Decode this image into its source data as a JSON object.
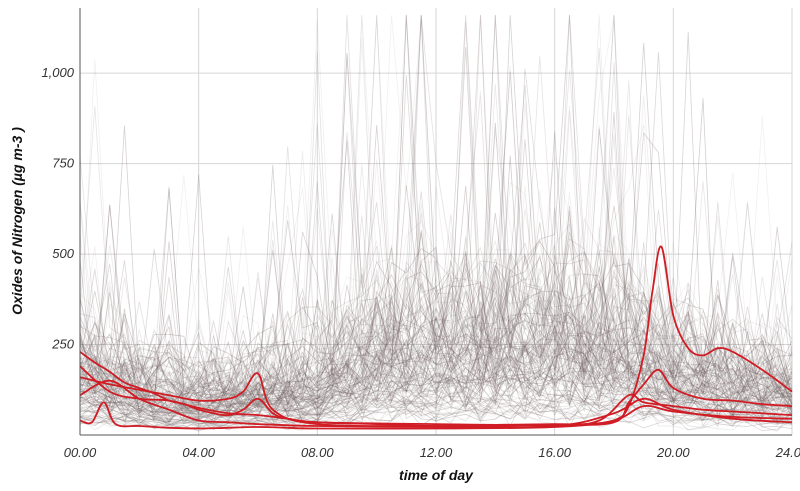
{
  "chart_data": {
    "type": "line",
    "title": "",
    "xlabel": "time of day",
    "ylabel": "Oxides of Nitrogen (µg m-3 )",
    "x_range": [
      0,
      24
    ],
    "ylim": [
      0,
      1180
    ],
    "x_ticks": [
      {
        "value": 0,
        "label": "00.00"
      },
      {
        "value": 4,
        "label": "04.00"
      },
      {
        "value": 8,
        "label": "08.00"
      },
      {
        "value": 12,
        "label": "12.00"
      },
      {
        "value": 16,
        "label": "16.00"
      },
      {
        "value": 20,
        "label": "20.00"
      },
      {
        "value": 24,
        "label": "24.00"
      }
    ],
    "y_ticks": [
      {
        "value": 250,
        "label": "250"
      },
      {
        "value": 500,
        "label": "500"
      },
      {
        "value": 750,
        "label": "750"
      },
      {
        "value": 1000,
        "label": "1,000"
      }
    ],
    "grid": true,
    "background_series": {
      "count": 150,
      "color": "#6b5a5a",
      "typical_profile": {
        "hours": [
          0,
          2,
          4,
          5,
          6,
          7,
          8,
          9,
          10,
          12,
          14,
          16,
          18,
          19,
          20,
          22,
          24
        ],
        "values": [
          150,
          110,
          90,
          95,
          105,
          110,
          130,
          170,
          200,
          210,
          215,
          230,
          210,
          190,
          160,
          130,
          110
        ]
      }
    },
    "series": [
      {
        "color": "#d01c24",
        "x": [
          0,
          0.5,
          1,
          1.5,
          2,
          2.5,
          3,
          3.5,
          4,
          4.5,
          5,
          5.5,
          6,
          6.5,
          7,
          8,
          10,
          12,
          14,
          16,
          17,
          18,
          18.5,
          19,
          19.3,
          19.6,
          20,
          20.5,
          21,
          21.5,
          22,
          23,
          24
        ],
        "y": [
          230,
          200,
          175,
          145,
          130,
          115,
          95,
          85,
          70,
          60,
          55,
          70,
          100,
          60,
          45,
          35,
          30,
          25,
          28,
          30,
          30,
          40,
          80,
          220,
          400,
          520,
          330,
          240,
          220,
          240,
          230,
          180,
          120
        ]
      },
      {
        "color": "#d01c24",
        "x": [
          0,
          1,
          2,
          3,
          4,
          5,
          5.5,
          6,
          6.5,
          8,
          12,
          16,
          18,
          18.5,
          19,
          19.5,
          20,
          21,
          22,
          23,
          24
        ],
        "y": [
          160,
          140,
          125,
          110,
          95,
          100,
          120,
          170,
          70,
          30,
          25,
          28,
          35,
          90,
          140,
          180,
          130,
          100,
          95,
          85,
          80
        ]
      },
      {
        "color": "#d01c24",
        "x": [
          0,
          1,
          2,
          3,
          4,
          5,
          6,
          7,
          8,
          12,
          16,
          17.5,
          18.5,
          19,
          20,
          21,
          22,
          23,
          24
        ],
        "y": [
          190,
          120,
          100,
          95,
          75,
          60,
          55,
          45,
          35,
          30,
          28,
          40,
          110,
          90,
          80,
          70,
          65,
          60,
          55
        ]
      },
      {
        "color": "#d01c24",
        "x": [
          0,
          0.4,
          0.8,
          1.2,
          2,
          3,
          4,
          5,
          6,
          7,
          8,
          12,
          16,
          18,
          19,
          20,
          22,
          24
        ],
        "y": [
          40,
          35,
          90,
          30,
          25,
          20,
          18,
          20,
          22,
          20,
          18,
          18,
          22,
          40,
          80,
          65,
          50,
          45
        ]
      },
      {
        "color": "#d01c24",
        "x": [
          0,
          1,
          2,
          3,
          4,
          5,
          6,
          8,
          12,
          16,
          18,
          19,
          20,
          22,
          24
        ],
        "y": [
          110,
          150,
          100,
          70,
          40,
          35,
          30,
          25,
          22,
          25,
          60,
          100,
          70,
          45,
          35
        ]
      }
    ]
  }
}
